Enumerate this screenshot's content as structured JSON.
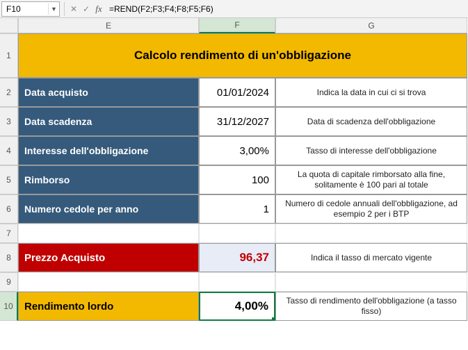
{
  "formula_bar": {
    "cell_ref": "F10",
    "formula": "=REND(F2;F3;F4;F8;F5;F6)"
  },
  "columns": {
    "E": "E",
    "F": "F",
    "G": "G"
  },
  "rows": {
    "r1": "1",
    "r2": "2",
    "r3": "3",
    "r4": "4",
    "r5": "5",
    "r6": "6",
    "r7": "7",
    "r8": "8",
    "r9": "9",
    "r10": "10"
  },
  "header_title": "Calcolo rendimento di un'obbligazione",
  "row2": {
    "label": "Data acquisto",
    "value": "01/01/2024",
    "desc": "Indica la data in cui ci si trova"
  },
  "row3": {
    "label": "Data scadenza",
    "value": "31/12/2027",
    "desc": "Data di scadenza dell'obbligazione"
  },
  "row4": {
    "label": "Interesse dell'obbligazione",
    "value": "3,00%",
    "desc": "Tasso di interesse dell'obbligazione"
  },
  "row5": {
    "label": "Rimborso",
    "value": "100",
    "desc": "La quota di capitale rimborsato alla fine, solitamente è 100 pari al totale"
  },
  "row6": {
    "label": "Numero cedole per anno",
    "value": "1",
    "desc": "Numero di cedole annuali dell'obbligazione, ad esempio 2 per i BTP"
  },
  "row8": {
    "label": "Prezzo Acquisto",
    "value": "96,37",
    "desc": "Indica il tasso di mercato vigente"
  },
  "row10": {
    "label": "Rendimento lordo",
    "value": "4,00%",
    "desc": "Tasso di rendimento dell'obbligazione (a tasso fisso)"
  },
  "colors": {
    "gold": "#f2b900",
    "blue": "#355a7c",
    "red": "#c00000",
    "selection": "#107c41",
    "price_bg": "#e8ecf7"
  }
}
